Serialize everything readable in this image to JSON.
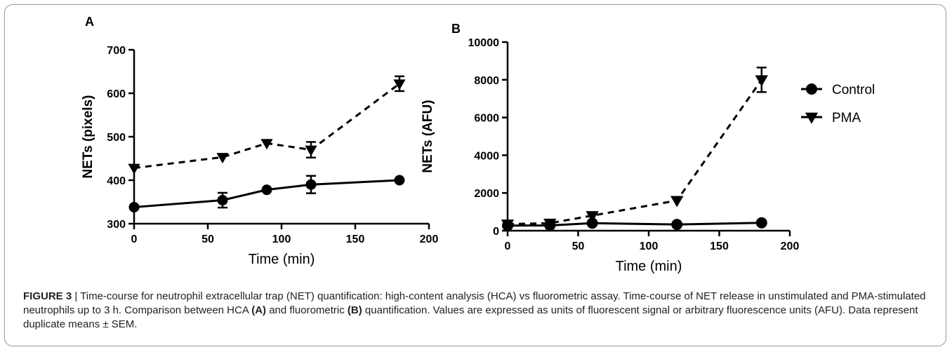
{
  "chart_data": [
    {
      "type": "line",
      "panel": "A",
      "x": [
        0,
        60,
        90,
        120,
        180
      ],
      "xlabel": "Time (min)",
      "ylabel": "NETs (pixels)",
      "xlim": [
        0,
        200
      ],
      "ylim": [
        300,
        700
      ],
      "xticks": [
        0,
        50,
        100,
        150,
        200
      ],
      "yticks": [
        300,
        400,
        500,
        600,
        700
      ],
      "series": [
        {
          "name": "Control",
          "style": "solid",
          "marker": "circle",
          "y": [
            338,
            354,
            378,
            390,
            400
          ],
          "err": [
            0,
            17,
            0,
            20,
            0
          ]
        },
        {
          "name": "PMA",
          "style": "dashed",
          "marker": "triangle-down",
          "y": [
            428,
            453,
            485,
            470,
            622
          ],
          "err": [
            0,
            0,
            0,
            18,
            17
          ]
        }
      ]
    },
    {
      "type": "line",
      "panel": "B",
      "x": [
        0,
        30,
        60,
        120,
        180
      ],
      "xlabel": "Time (min)",
      "ylabel": "NETs (AFU)",
      "xlim": [
        0,
        200
      ],
      "ylim": [
        0,
        10000
      ],
      "xticks": [
        0,
        50,
        100,
        150,
        200
      ],
      "yticks": [
        0,
        2000,
        4000,
        6000,
        8000,
        10000
      ],
      "legend": "top-right",
      "series": [
        {
          "name": "Control",
          "style": "solid",
          "marker": "circle",
          "y": [
            270,
            280,
            400,
            330,
            420
          ],
          "err": [
            0,
            0,
            0,
            0,
            0
          ]
        },
        {
          "name": "PMA",
          "style": "dashed",
          "marker": "triangle-down",
          "y": [
            350,
            400,
            800,
            1600,
            8000
          ],
          "err": [
            0,
            0,
            0,
            0,
            650
          ]
        }
      ]
    }
  ],
  "caption": {
    "label": "FIGURE 3",
    "sep": " | ",
    "t1": "Time-course for neutrophil extracellular trap (NET) quantification: high-content analysis (HCA) vs fluorometric assay. Time-course of NET release in unstimulated and PMA-stimulated neutrophils up to 3 h. Comparison between HCA ",
    "a": "(A)",
    "t2": " and fluorometric ",
    "b": "(B)",
    "t3": " quantification. Values are expressed as units of fluorescent signal or arbitrary fluorescence units (AFU). Data represent duplicate means ± SEM."
  },
  "colors": {
    "ink": "#000000",
    "border": "#9a9a9a"
  }
}
